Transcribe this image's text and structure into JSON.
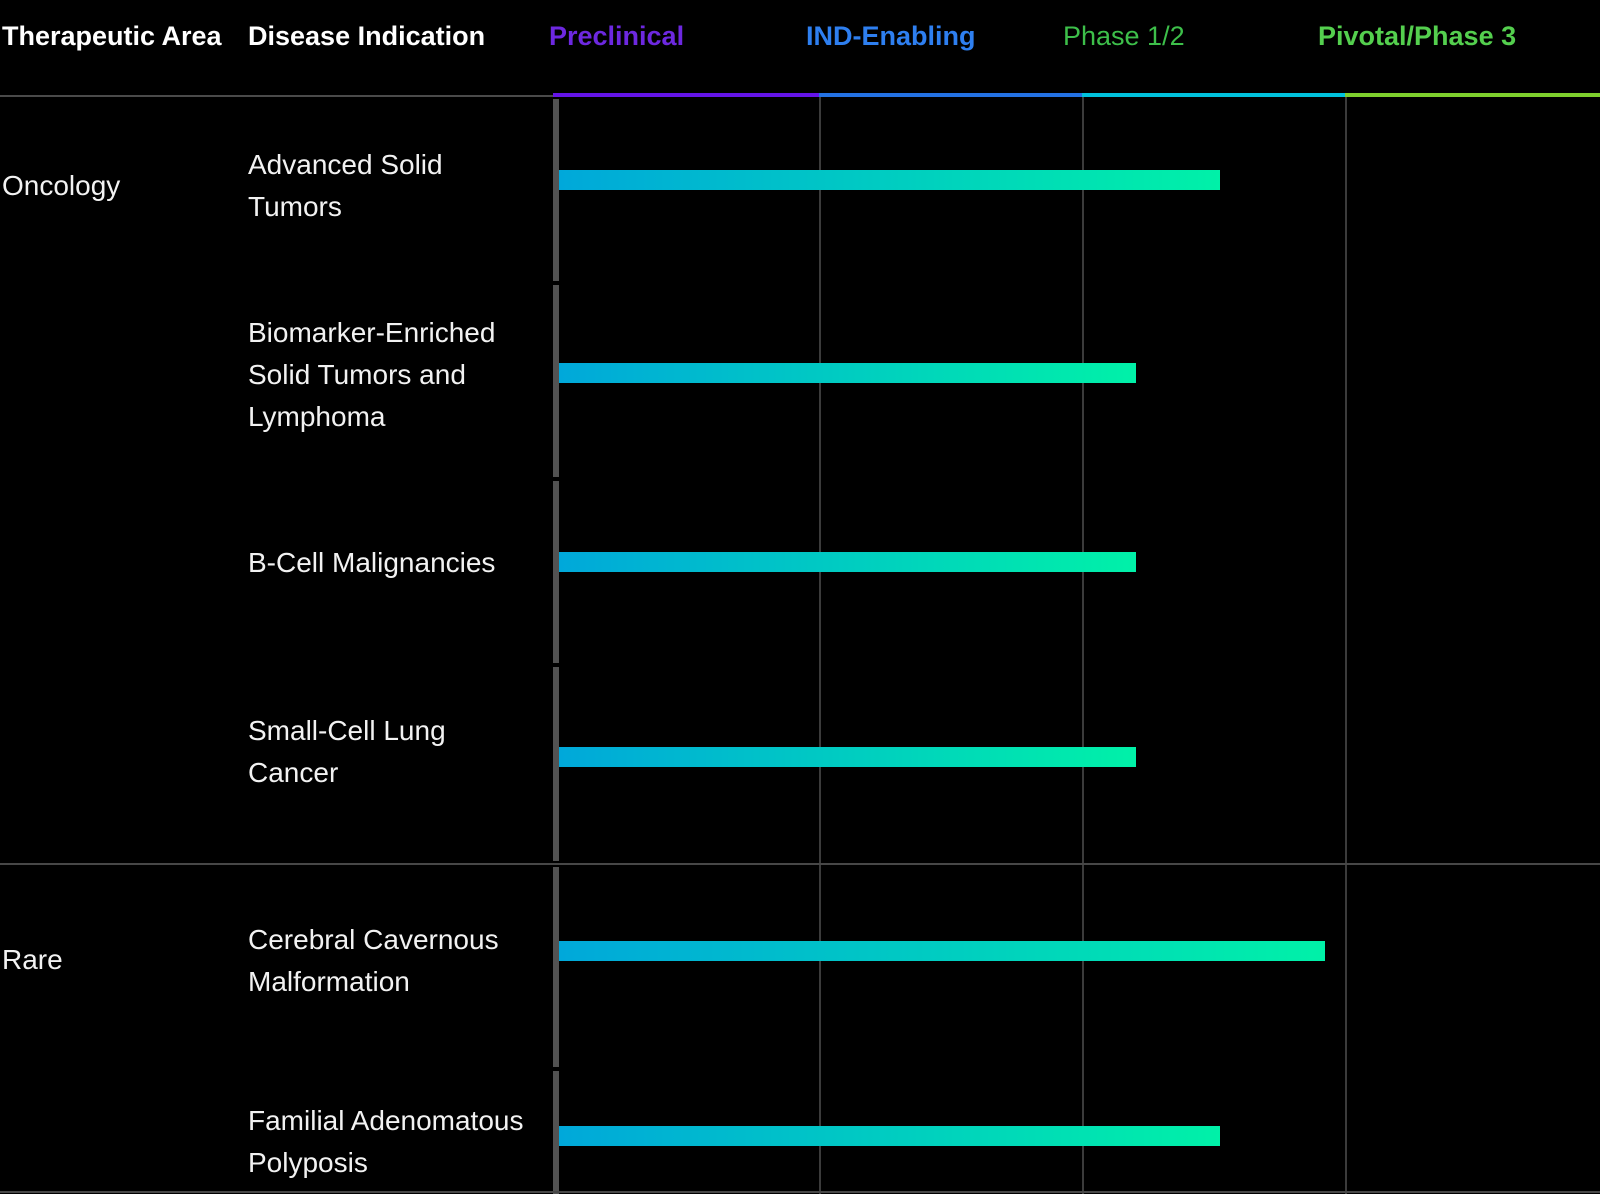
{
  "header": {
    "col_therapeutic_area": "Therapeutic Area",
    "col_disease_indication": "Disease Indication",
    "phases": [
      {
        "label": "Preclinical",
        "text_color": "#6d28e0",
        "underline_color": "#6414e8"
      },
      {
        "label": "IND-Enabling",
        "text_color": "#2e7ff0",
        "underline_color": "#2472e4"
      },
      {
        "label": "Phase 1/2",
        "text_color": "#3dbf4a",
        "underline_color": "#00c2dd"
      },
      {
        "label": "Pivotal/Phase 3",
        "text_color": "#54cf4e",
        "underline_color": "#7ecf2d"
      }
    ]
  },
  "sections": [
    {
      "area": "Oncology",
      "rows": [
        {
          "indication": "Advanced Solid\nTumors"
        },
        {
          "indication": "Biomarker-Enriched\nSolid Tumors and\nLymphoma"
        },
        {
          "indication": "B-Cell Malignancies"
        },
        {
          "indication": "Small-Cell Lung\nCancer"
        }
      ]
    },
    {
      "area": "Rare",
      "rows": [
        {
          "indication": "Cerebral Cavernous\nMalformation"
        },
        {
          "indication": "Familial Adenomatous\nPolyposis"
        }
      ]
    }
  ],
  "chart_data": {
    "type": "bar",
    "orientation": "horizontal",
    "title": "",
    "phase_columns": [
      "Preclinical",
      "IND-Enabling",
      "Phase 1/2",
      "Pivotal/Phase 3"
    ],
    "categories": [
      "Advanced Solid Tumors",
      "Biomarker-Enriched Solid Tumors and Lymphoma",
      "B-Cell Malignancies",
      "Small-Cell Lung Cancer",
      "Cerebral Cavernous Malformation",
      "Familial Adenomatous Polyposis"
    ],
    "therapeutic_areas": [
      "Oncology",
      "Oncology",
      "Oncology",
      "Oncology",
      "Rare",
      "Rare"
    ],
    "values_pct_of_timeline": [
      63.5,
      55.4,
      55.4,
      55.4,
      73.6,
      63.5
    ],
    "values_phase_units": [
      2.54,
      2.22,
      2.22,
      2.22,
      2.95,
      2.54
    ],
    "xlim_phases": [
      0,
      4
    ],
    "grid": "vertical gridlines at each phase boundary",
    "bar_gradient": {
      "start": "#00a8da",
      "end": "#00f1a8"
    },
    "background_color": "#000000"
  }
}
